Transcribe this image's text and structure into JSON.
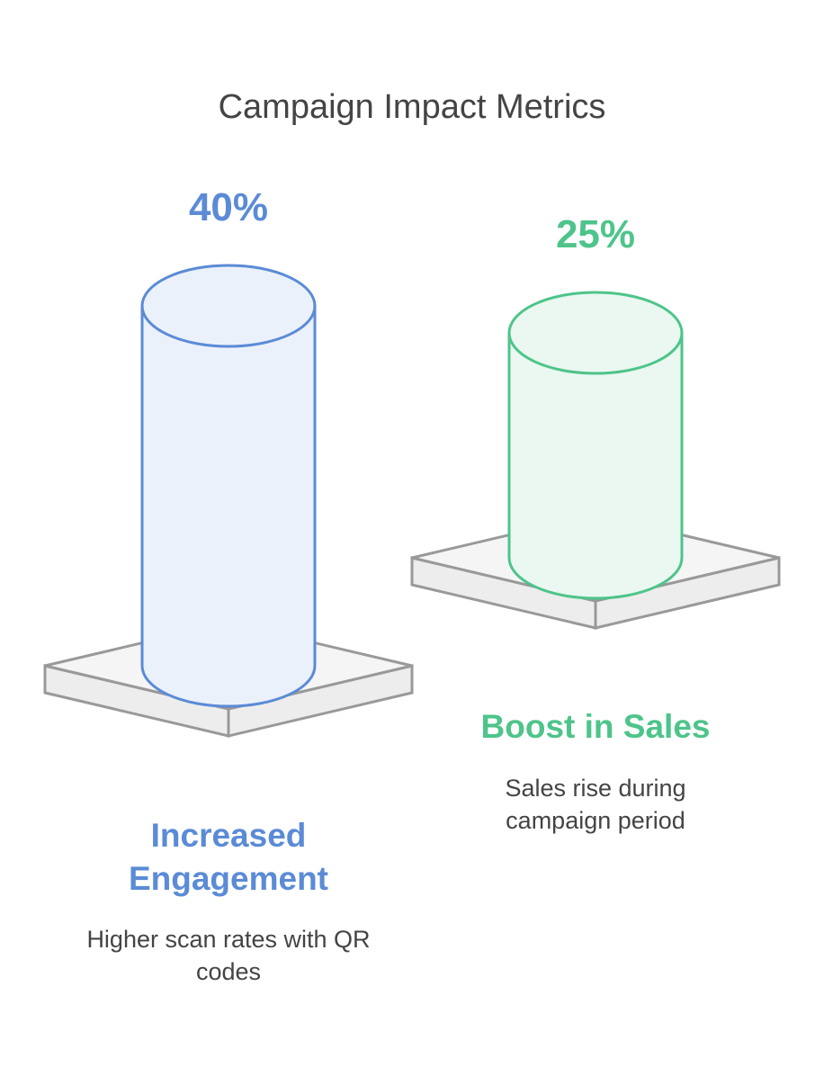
{
  "chart_data": {
    "type": "cylinder",
    "title": "Campaign Impact Metrics",
    "categories": [
      "Increased Engagement",
      "Boost in Sales"
    ],
    "values": [
      40,
      25
    ],
    "value_labels": [
      "40%",
      "25%"
    ],
    "descriptions": [
      "Higher scan rates with QR codes",
      "Sales rise during campaign period"
    ],
    "colors": [
      "#5b8bd6",
      "#4ec48a"
    ]
  }
}
